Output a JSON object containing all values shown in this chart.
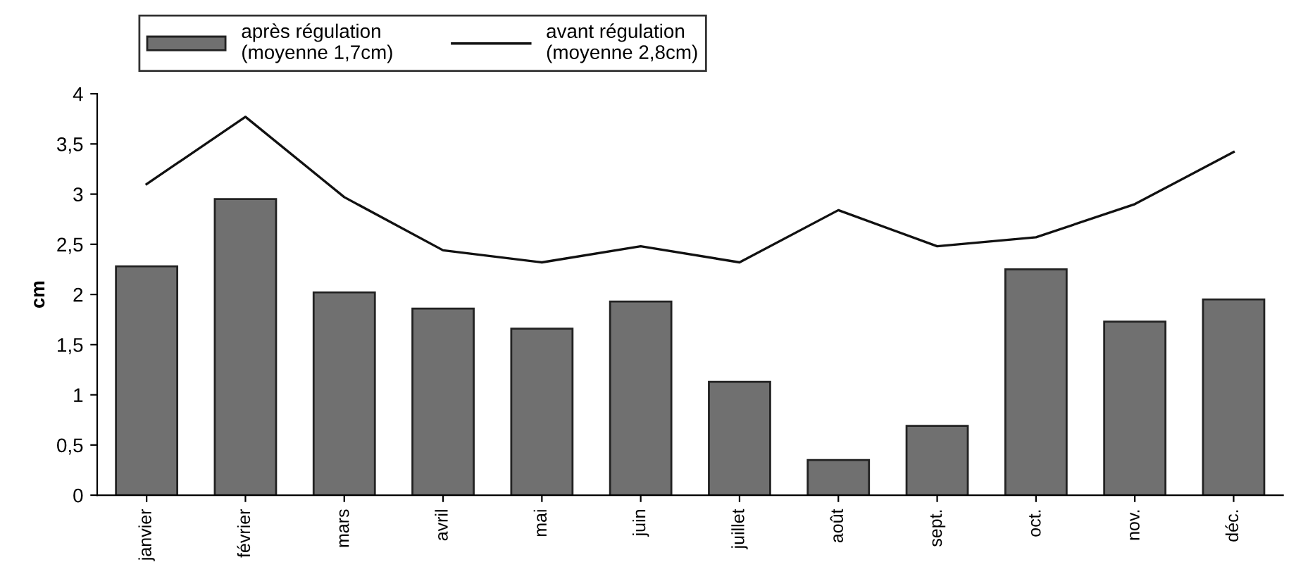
{
  "chart_data": {
    "type": "bar",
    "ylabel": "cm",
    "categories": [
      "janvier",
      "février",
      "mars",
      "avril",
      "mai",
      "juin",
      "juillet",
      "août",
      "sept.",
      "oct.",
      "nov.",
      "déc."
    ],
    "series": [
      {
        "name": "après régulation\n(moyenne 1,7cm)",
        "color": "#707070",
        "values": [
          2.28,
          2.95,
          2.02,
          1.86,
          1.66,
          1.93,
          1.13,
          0.35,
          0.69,
          2.25,
          1.73,
          1.95
        ]
      },
      {
        "name": "avant régulation\n(moyenne 2,8cm)",
        "type": "line",
        "color": "#111111",
        "values": [
          3.1,
          3.77,
          2.97,
          2.44,
          2.32,
          2.48,
          2.32,
          2.84,
          2.48,
          2.57,
          2.9,
          3.42
        ]
      }
    ],
    "ylim": [
      0,
      4
    ],
    "yticks": [
      0,
      {
        "value": 0.5,
        "label": "0,5"
      },
      1,
      {
        "value": 1.5,
        "label": "1,5"
      },
      2,
      {
        "value": 2.5,
        "label": "2,5"
      },
      3,
      {
        "value": 3.5,
        "label": "3,5"
      },
      4
    ],
    "grid": false,
    "legend": "top left",
    "marker": "none",
    "line_style": "solid"
  }
}
